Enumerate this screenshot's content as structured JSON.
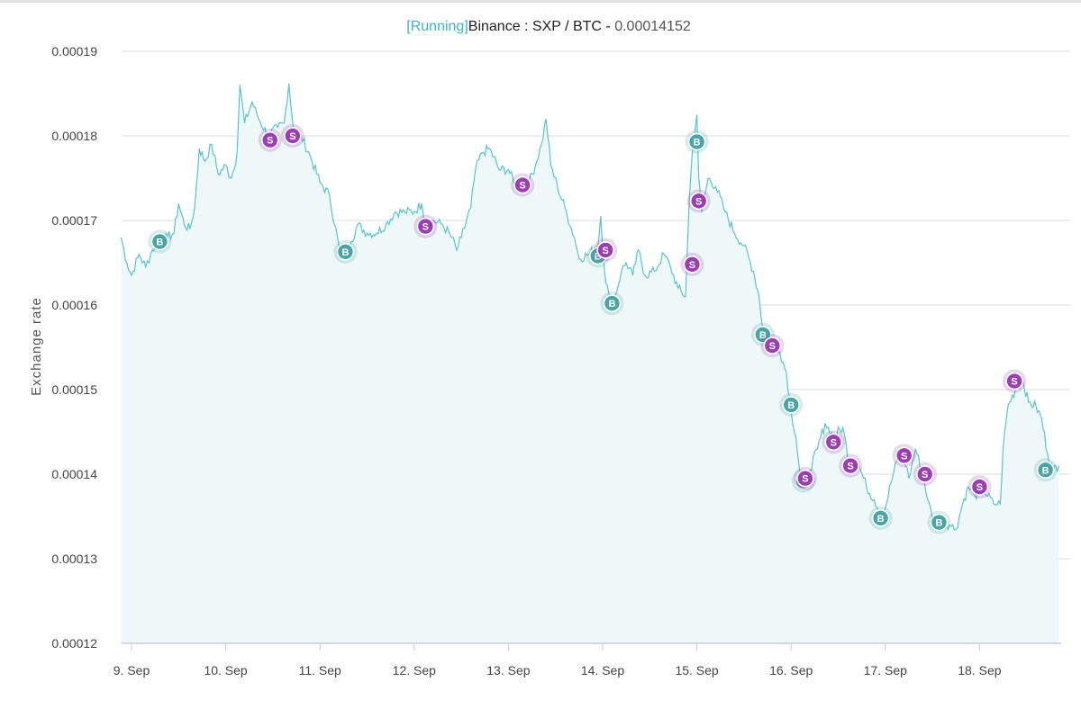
{
  "chart_data": {
    "type": "area",
    "title_status": "[Running]",
    "title_main": "Binance : SXP / BTC - ",
    "title_value": "0.00014152",
    "ylabel": "Exchange rate",
    "xlabel": "",
    "ylim": [
      0.00012,
      0.00019
    ],
    "y_ticks": [
      "0.00012",
      "0.00013",
      "0.00014",
      "0.00015",
      "0.00016",
      "0.00017",
      "0.00018",
      "0.00019"
    ],
    "x_ticks": [
      {
        "label": "9. Sep",
        "t": 0
      },
      {
        "label": "10. Sep",
        "t": 1
      },
      {
        "label": "11. Sep",
        "t": 2
      },
      {
        "label": "12. Sep",
        "t": 3
      },
      {
        "label": "13. Sep",
        "t": 4
      },
      {
        "label": "14. Sep",
        "t": 5
      },
      {
        "label": "15. Sep",
        "t": 6
      },
      {
        "label": "16. Sep",
        "t": 7
      },
      {
        "label": "17. Sep",
        "t": 8
      },
      {
        "label": "18. Sep",
        "t": 9
      }
    ],
    "x_range_days": [
      -0.11,
      9.84
    ],
    "grid": true,
    "colors": {
      "line": "#5cc4c9",
      "area": "#eef8f9",
      "grid": "#dcdcdc",
      "axis": "#c9c9e6",
      "buy": "#4aa3a4",
      "sell": "#9b3fb0",
      "status": "#3fb6bf"
    },
    "series": [
      {
        "points": [
          [
            -0.11,
            0.000168
          ],
          [
            -0.05,
            0.000165
          ],
          [
            0.0,
            0.0001635
          ],
          [
            0.08,
            0.000166
          ],
          [
            0.15,
            0.0001645
          ],
          [
            0.22,
            0.0001665
          ],
          [
            0.3,
            0.0001675
          ],
          [
            0.38,
            0.000168
          ],
          [
            0.45,
            0.0001685
          ],
          [
            0.5,
            0.000172
          ],
          [
            0.56,
            0.0001695
          ],
          [
            0.62,
            0.000169
          ],
          [
            0.67,
            0.0001715
          ],
          [
            0.72,
            0.0001785
          ],
          [
            0.78,
            0.000177
          ],
          [
            0.85,
            0.000179
          ],
          [
            0.92,
            0.0001755
          ],
          [
            1.0,
            0.0001765
          ],
          [
            1.06,
            0.000175
          ],
          [
            1.12,
            0.000178
          ],
          [
            1.15,
            0.000186
          ],
          [
            1.2,
            0.0001815
          ],
          [
            1.28,
            0.000184
          ],
          [
            1.35,
            0.000182
          ],
          [
            1.45,
            0.00018
          ],
          [
            1.55,
            0.000181
          ],
          [
            1.62,
            0.0001815
          ],
          [
            1.67,
            0.0001862
          ],
          [
            1.72,
            0.0001805
          ],
          [
            1.8,
            0.00018
          ],
          [
            1.9,
            0.0001775
          ],
          [
            2.0,
            0.0001745
          ],
          [
            2.1,
            0.000173
          ],
          [
            2.2,
            0.000167
          ],
          [
            2.26,
            0.0001665
          ],
          [
            2.33,
            0.0001675
          ],
          [
            2.4,
            0.0001695
          ],
          [
            2.5,
            0.0001685
          ],
          [
            2.6,
            0.0001685
          ],
          [
            2.7,
            0.0001695
          ],
          [
            2.8,
            0.000171
          ],
          [
            2.9,
            0.000171
          ],
          [
            3.0,
            0.000171
          ],
          [
            3.08,
            0.000172
          ],
          [
            3.12,
            0.0001695
          ],
          [
            3.2,
            0.00017
          ],
          [
            3.3,
            0.0001695
          ],
          [
            3.4,
            0.000168
          ],
          [
            3.45,
            0.0001665
          ],
          [
            3.5,
            0.000168
          ],
          [
            3.6,
            0.0001715
          ],
          [
            3.65,
            0.000176
          ],
          [
            3.72,
            0.000178
          ],
          [
            3.8,
            0.0001785
          ],
          [
            3.9,
            0.000176
          ],
          [
            4.0,
            0.000176
          ],
          [
            4.08,
            0.000174
          ],
          [
            4.15,
            0.0001745
          ],
          [
            4.22,
            0.0001745
          ],
          [
            4.3,
            0.000177
          ],
          [
            4.35,
            0.000179
          ],
          [
            4.4,
            0.000182
          ],
          [
            4.45,
            0.0001765
          ],
          [
            4.52,
            0.000174
          ],
          [
            4.6,
            0.0001715
          ],
          [
            4.7,
            0.000168
          ],
          [
            4.75,
            0.0001655
          ],
          [
            4.85,
            0.000166
          ],
          [
            4.95,
            0.000167
          ],
          [
            4.98,
            0.0001705
          ],
          [
            5.02,
            0.000164
          ],
          [
            5.08,
            0.00016
          ],
          [
            5.13,
            0.000161
          ],
          [
            5.2,
            0.000164
          ],
          [
            5.25,
            0.000165
          ],
          [
            5.32,
            0.0001635
          ],
          [
            5.38,
            0.0001665
          ],
          [
            5.45,
            0.0001635
          ],
          [
            5.55,
            0.000164
          ],
          [
            5.65,
            0.000166
          ],
          [
            5.72,
            0.0001645
          ],
          [
            5.8,
            0.000162
          ],
          [
            5.88,
            0.000161
          ],
          [
            5.92,
            0.0001725
          ],
          [
            5.96,
            0.0001795
          ],
          [
            6.0,
            0.0001825
          ],
          [
            6.02,
            0.000175
          ],
          [
            6.05,
            0.000171
          ],
          [
            6.12,
            0.000175
          ],
          [
            6.2,
            0.000174
          ],
          [
            6.3,
            0.000171
          ],
          [
            6.4,
            0.0001685
          ],
          [
            6.5,
            0.000167
          ],
          [
            6.6,
            0.000164
          ],
          [
            6.66,
            0.000161
          ],
          [
            6.7,
            0.000157
          ],
          [
            6.75,
            0.0001565
          ],
          [
            6.82,
            0.000156
          ],
          [
            6.88,
            0.0001545
          ],
          [
            6.95,
            0.000152
          ],
          [
            7.0,
            0.0001475
          ],
          [
            7.05,
            0.0001445
          ],
          [
            7.1,
            0.0001395
          ],
          [
            7.15,
            0.0001395
          ],
          [
            7.2,
            0.0001405
          ],
          [
            7.28,
            0.000143
          ],
          [
            7.36,
            0.000146
          ],
          [
            7.45,
            0.0001445
          ],
          [
            7.55,
            0.0001455
          ],
          [
            7.62,
            0.000141
          ],
          [
            7.72,
            0.000141
          ],
          [
            7.8,
            0.0001385
          ],
          [
            7.88,
            0.000137
          ],
          [
            7.95,
            0.0001355
          ],
          [
            8.0,
            0.000136
          ],
          [
            8.06,
            0.000139
          ],
          [
            8.12,
            0.0001415
          ],
          [
            8.18,
            0.000143
          ],
          [
            8.25,
            0.0001395
          ],
          [
            8.32,
            0.000143
          ],
          [
            8.4,
            0.00014
          ],
          [
            8.45,
            0.000137
          ],
          [
            8.52,
            0.000134
          ],
          [
            8.6,
            0.0001345
          ],
          [
            8.68,
            0.000134
          ],
          [
            8.75,
            0.0001335
          ],
          [
            8.82,
            0.0001365
          ],
          [
            8.88,
            0.0001385
          ],
          [
            8.95,
            0.0001375
          ],
          [
            9.05,
            0.000138
          ],
          [
            9.15,
            0.0001365
          ],
          [
            9.22,
            0.0001365
          ],
          [
            9.25,
            0.000143
          ],
          [
            9.3,
            0.000148
          ],
          [
            9.38,
            0.00015
          ],
          [
            9.46,
            0.000151
          ],
          [
            9.52,
            0.0001485
          ],
          [
            9.6,
            0.000148
          ],
          [
            9.66,
            0.0001465
          ],
          [
            9.72,
            0.0001425
          ],
          [
            9.78,
            0.0001405
          ],
          [
            9.84,
            0.000141
          ]
        ]
      }
    ],
    "markers": [
      {
        "type": "buy",
        "label": "B",
        "t": 0.3,
        "v": 0.0001675
      },
      {
        "type": "sell",
        "label": "S",
        "t": 1.47,
        "v": 0.0001795
      },
      {
        "type": "sell",
        "label": "S",
        "t": 1.71,
        "v": 0.00018
      },
      {
        "type": "buy",
        "label": "B",
        "t": 2.27,
        "v": 0.0001663
      },
      {
        "type": "sell",
        "label": "S",
        "t": 3.12,
        "v": 0.0001693
      },
      {
        "type": "sell",
        "label": "S",
        "t": 4.15,
        "v": 0.0001742
      },
      {
        "type": "buy",
        "label": "B",
        "t": 4.95,
        "v": 0.0001658
      },
      {
        "type": "sell",
        "label": "S",
        "t": 5.03,
        "v": 0.0001665
      },
      {
        "type": "buy",
        "label": "B",
        "t": 5.1,
        "v": 0.0001602
      },
      {
        "type": "sell",
        "label": "S",
        "t": 5.95,
        "v": 0.0001648
      },
      {
        "type": "buy",
        "label": "B",
        "t": 6.0,
        "v": 0.0001793
      },
      {
        "type": "sell",
        "label": "S",
        "t": 6.02,
        "v": 0.0001723
      },
      {
        "type": "buy",
        "label": "B",
        "t": 6.7,
        "v": 0.0001565
      },
      {
        "type": "sell",
        "label": "S",
        "t": 6.8,
        "v": 0.0001552
      },
      {
        "type": "buy",
        "label": "B",
        "t": 7.0,
        "v": 0.0001482
      },
      {
        "type": "buy",
        "label": "B",
        "t": 7.13,
        "v": 0.0001392
      },
      {
        "type": "sell",
        "label": "S",
        "t": 7.15,
        "v": 0.0001395
      },
      {
        "type": "sell",
        "label": "S",
        "t": 7.45,
        "v": 0.0001438
      },
      {
        "type": "sell",
        "label": "S",
        "t": 7.63,
        "v": 0.000141
      },
      {
        "type": "buy",
        "label": "B",
        "t": 7.95,
        "v": 0.0001348
      },
      {
        "type": "sell",
        "label": "S",
        "t": 8.2,
        "v": 0.0001422
      },
      {
        "type": "sell",
        "label": "S",
        "t": 8.42,
        "v": 0.00014
      },
      {
        "type": "buy",
        "label": "B",
        "t": 8.57,
        "v": 0.0001343
      },
      {
        "type": "sell",
        "label": "S",
        "t": 9.0,
        "v": 0.0001385
      },
      {
        "type": "sell",
        "label": "S",
        "t": 9.37,
        "v": 0.000151
      },
      {
        "type": "buy",
        "label": "B",
        "t": 9.7,
        "v": 0.0001405
      }
    ]
  }
}
